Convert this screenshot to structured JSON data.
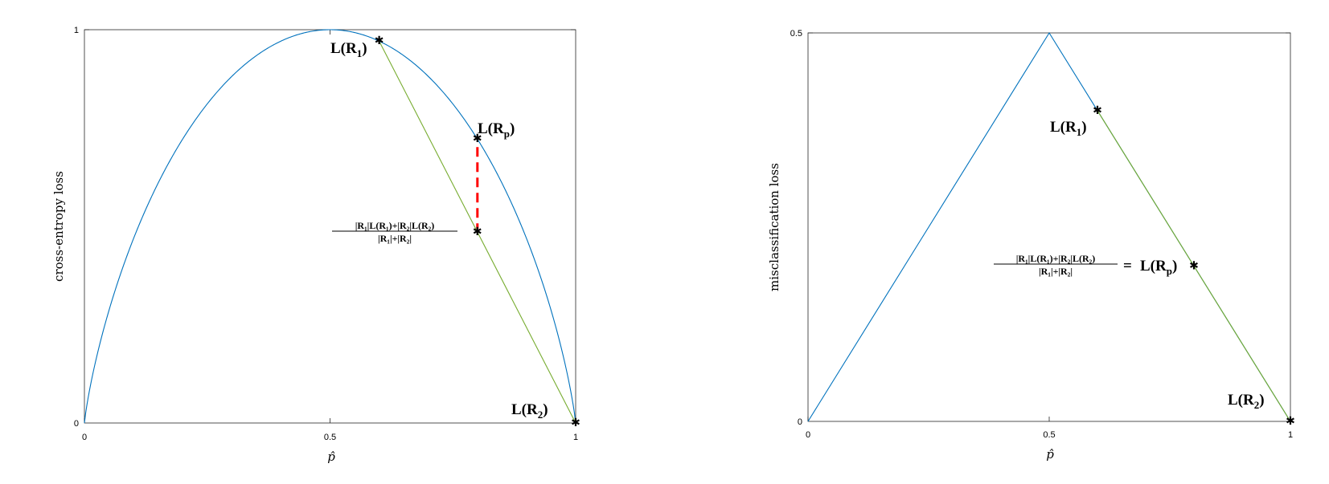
{
  "colors": {
    "curve": "#0072BD",
    "chord": "#77AC30",
    "gap": "#FF0000",
    "marker": "#000000"
  },
  "chart_data": [
    {
      "type": "line",
      "xlabel": "p̂",
      "ylabel": "cross-entropy loss",
      "xlim": [
        0,
        1
      ],
      "ylim": [
        0,
        1
      ],
      "xticks": [
        "0",
        "0.5",
        "1"
      ],
      "yticks": [
        "0",
        "1"
      ],
      "grid": false,
      "series": [
        {
          "function": "-p*log2(p)-(1-p)*log2(1-p)",
          "x_range": [
            0,
            1
          ]
        },
        {
          "x": [
            0.6,
            1
          ],
          "y": [
            0.971,
            0
          ]
        }
      ],
      "points": [
        {
          "label": "L(R₁)",
          "x": 0.6,
          "y": 0.971
        },
        {
          "label": "L(Rₚ)",
          "x": 0.8,
          "y": 0.722
        },
        {
          "label": "L(R₂)",
          "x": 1,
          "y": 0
        },
        {
          "label": "|R₁|L(R₁)+|R₂|L(R₂) / |R₁|+|R₂|",
          "x": 0.8,
          "y": 0.4855
        }
      ],
      "gap_segment": {
        "x": 0.8,
        "y": [
          0.4855,
          0.722
        ]
      },
      "annotations": {
        "r1_func": "L(",
        "r1_sym": "R",
        "r1_sub": "1",
        "r1_close": ")",
        "rp_func": "L(",
        "rp_sym": "R",
        "rp_sub": "p",
        "rp_close": ")",
        "r2_func": "L(",
        "r2_sym": "R",
        "r2_sub": "2",
        "r2_close": ")",
        "frac_num": "|R₁|L(R₁)+|R₂|L(R₂)",
        "frac_den": "|R₁|+|R₂|"
      }
    },
    {
      "type": "line",
      "xlabel": "p̂",
      "ylabel": "misclassification loss",
      "xlim": [
        0,
        1
      ],
      "ylim": [
        0,
        0.5
      ],
      "xticks": [
        "0",
        "0.5",
        "1"
      ],
      "yticks": [
        "0",
        "0.5"
      ],
      "grid": false,
      "series": [
        {
          "x": [
            0,
            0.5,
            1
          ],
          "y": [
            0,
            0.5,
            0
          ]
        },
        {
          "x": [
            0.6,
            1
          ],
          "y": [
            0.4,
            0
          ]
        }
      ],
      "points": [
        {
          "label": "L(R₁)",
          "x": 0.6,
          "y": 0.4
        },
        {
          "label": "L(Rₚ)",
          "x": 0.8,
          "y": 0.2
        },
        {
          "label": "L(R₂)",
          "x": 1,
          "y": 0
        }
      ],
      "annotations": {
        "r1_func": "L(",
        "r1_sym": "R",
        "r1_sub": "1",
        "r1_close": ")",
        "r2_func": "L(",
        "r2_sym": "R",
        "r2_sub": "2",
        "r2_close": ")",
        "frac_num": "|R₁|L(R₁)+|R₂|L(R₂)",
        "frac_den": "|R₁|+|R₂|",
        "eq_sign": "=",
        "rp_func": "L(",
        "rp_sym": "R",
        "rp_sub": "p",
        "rp_close": ")"
      }
    }
  ]
}
